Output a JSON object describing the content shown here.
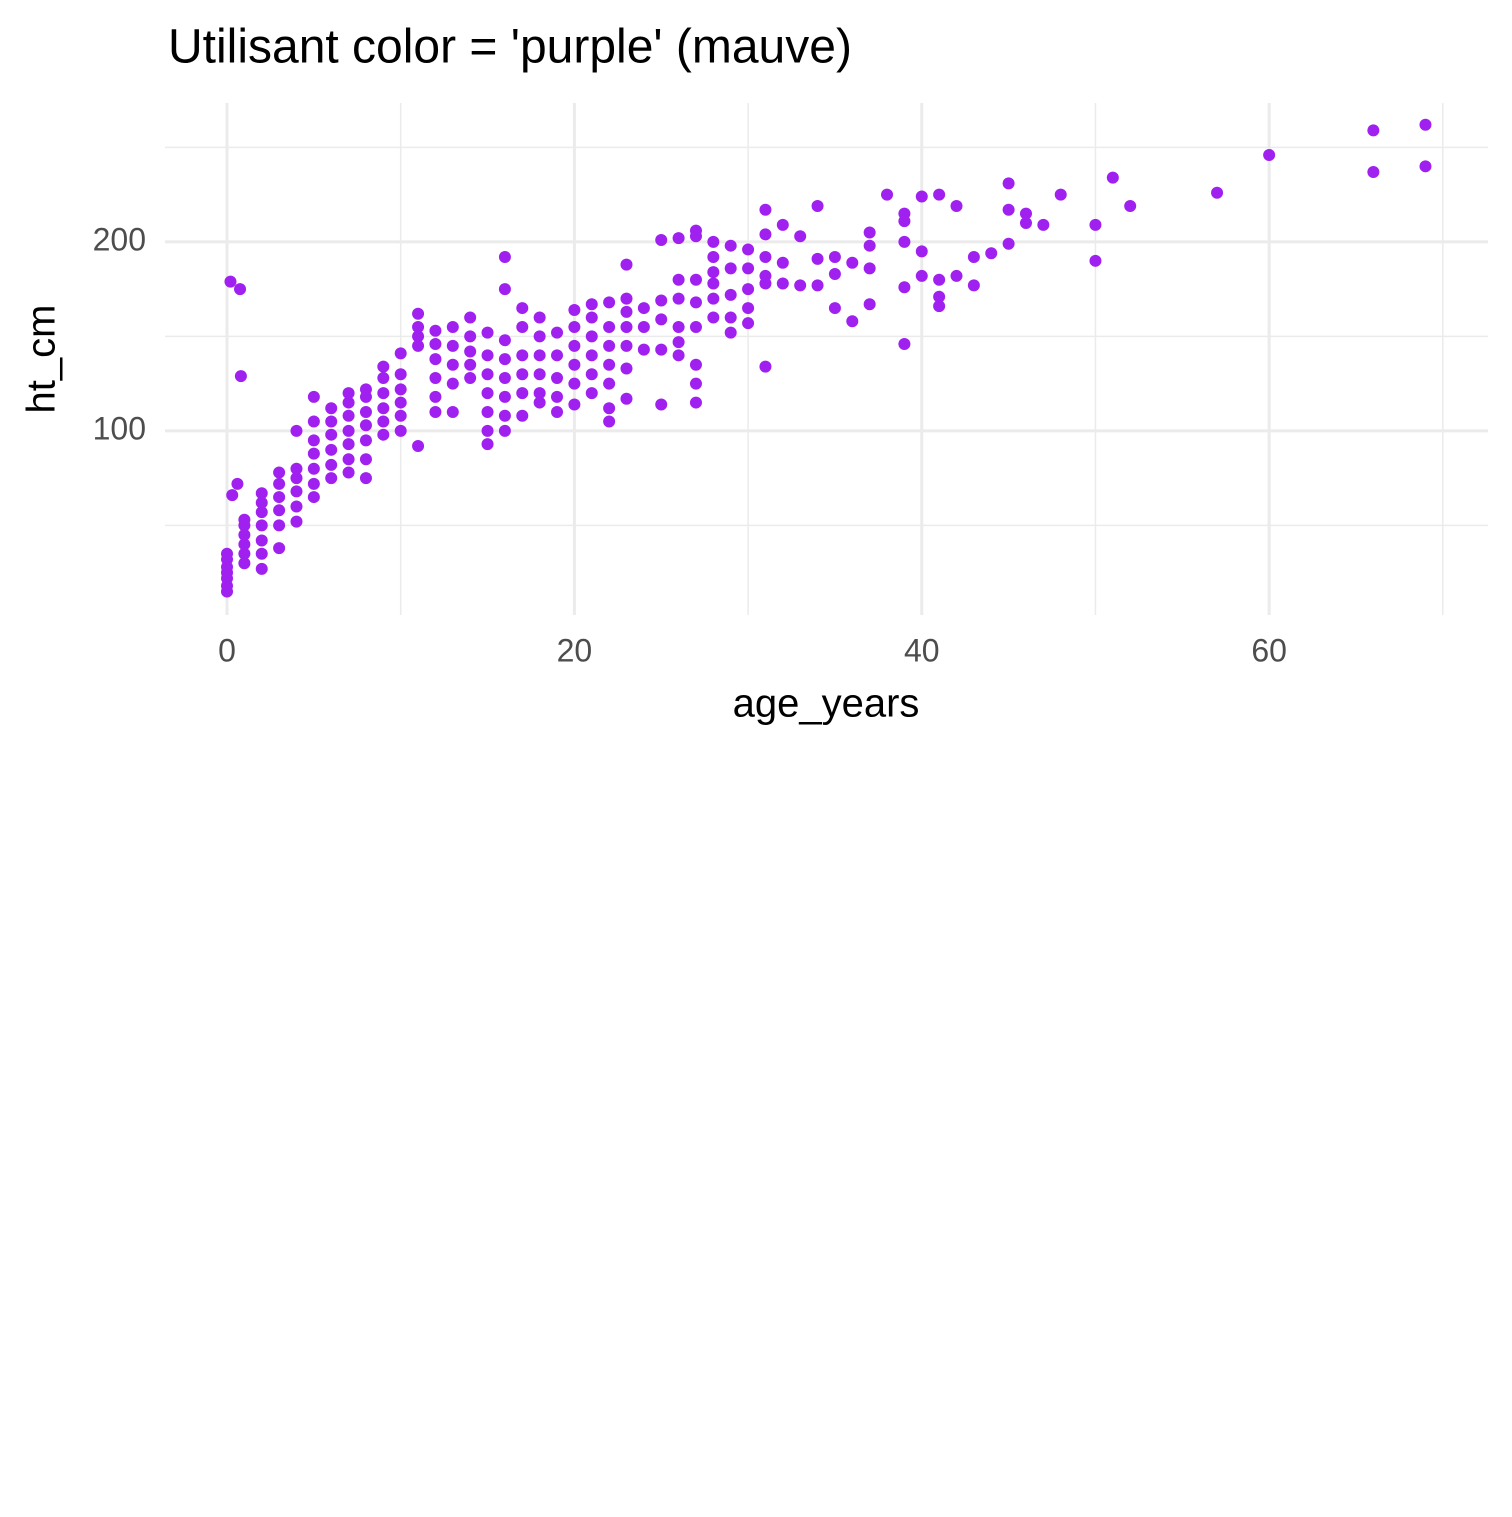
{
  "chart_data": {
    "type": "scatter",
    "title": "Utilisant color = 'purple' (mauve)",
    "x_label": "age_years",
    "y_label": "ht_cm",
    "color": "#A020F0",
    "grid": true,
    "xlim": [
      -3.57,
      72.6
    ],
    "ylim": [
      2.6,
      273.5
    ],
    "xticks": [
      0,
      20,
      40,
      60
    ],
    "yticks": [
      100,
      200
    ],
    "x_minor_grid": [
      10,
      30,
      50,
      70
    ],
    "y_minor_grid": [
      50,
      150,
      250
    ],
    "series": [
      {
        "x": [
          0,
          0,
          0,
          0,
          0,
          0,
          0,
          0.2,
          0.3,
          0.6,
          0.75,
          0.8,
          1,
          1,
          1,
          1,
          1,
          1,
          2,
          2,
          2,
          2,
          2,
          2,
          2,
          3,
          3,
          3,
          3,
          3,
          3,
          4,
          4,
          4,
          4,
          4,
          4,
          5,
          5,
          5,
          5,
          5,
          5,
          5,
          6,
          6,
          6,
          6,
          6,
          6,
          7,
          7,
          7,
          7,
          7,
          7,
          7,
          8,
          8,
          8,
          8,
          8,
          8,
          8,
          9,
          9,
          9,
          9,
          9,
          9,
          10,
          10,
          10,
          10,
          10,
          10,
          11,
          11,
          11,
          11,
          11,
          12,
          12,
          12,
          12,
          12,
          12,
          13,
          13,
          13,
          13,
          13,
          14,
          14,
          14,
          14,
          14,
          15,
          15,
          15,
          15,
          15,
          15,
          15,
          16,
          16,
          16,
          16,
          16,
          16,
          16,
          16,
          17,
          17,
          17,
          17,
          17,
          17,
          18,
          18,
          18,
          18,
          18,
          18,
          19,
          19,
          19,
          19,
          19,
          20,
          20,
          20,
          20,
          20,
          20,
          21,
          21,
          21,
          21,
          21,
          21,
          22,
          22,
          22,
          22,
          22,
          22,
          22,
          23,
          23,
          23,
          23,
          23,
          23,
          23,
          24,
          24,
          24,
          25,
          25,
          25,
          25,
          25,
          26,
          26,
          26,
          26,
          26,
          26,
          27,
          27,
          27,
          27,
          27,
          27,
          27,
          27,
          28,
          28,
          28,
          28,
          28,
          28,
          29,
          29,
          29,
          29,
          29,
          30,
          30,
          30,
          30,
          30,
          31,
          31,
          31,
          31,
          31,
          31,
          32,
          32,
          32,
          33,
          33,
          34,
          34,
          34,
          35,
          35,
          35,
          36,
          36,
          37,
          37,
          37,
          37,
          38,
          39,
          39,
          39,
          39,
          39,
          40,
          40,
          40,
          41,
          41,
          41,
          41,
          42,
          42,
          43,
          43,
          44,
          45,
          45,
          45,
          46,
          46,
          47,
          48,
          50,
          50,
          51,
          52,
          57,
          60,
          66,
          66,
          69,
          69
        ],
        "y": [
          15,
          18,
          22,
          25,
          28,
          32,
          35,
          179,
          66,
          72,
          175,
          129,
          30,
          35,
          40,
          45,
          50,
          53,
          27,
          35,
          42,
          50,
          57,
          62,
          67,
          38,
          50,
          58,
          65,
          72,
          78,
          52,
          60,
          68,
          75,
          80,
          100,
          65,
          72,
          80,
          88,
          95,
          105,
          118,
          75,
          82,
          90,
          98,
          105,
          112,
          78,
          85,
          93,
          100,
          108,
          115,
          120,
          75,
          85,
          95,
          103,
          110,
          118,
          122,
          98,
          105,
          112,
          120,
          128,
          134,
          100,
          108,
          115,
          122,
          130,
          141,
          92,
          145,
          150,
          155,
          162,
          110,
          118,
          128,
          138,
          146,
          153,
          110,
          125,
          135,
          145,
          155,
          128,
          135,
          142,
          150,
          160,
          93,
          100,
          110,
          120,
          130,
          140,
          152,
          100,
          108,
          118,
          128,
          138,
          148,
          175,
          192,
          108,
          120,
          130,
          140,
          155,
          165,
          115,
          120,
          130,
          140,
          150,
          160,
          110,
          118,
          128,
          140,
          152,
          114,
          125,
          135,
          145,
          155,
          164,
          120,
          130,
          140,
          150,
          160,
          167,
          105,
          112,
          125,
          135,
          145,
          155,
          168,
          117,
          133,
          145,
          155,
          163,
          170,
          188,
          143,
          155,
          165,
          114,
          143,
          159,
          169,
          201,
          140,
          147,
          155,
          170,
          180,
          202,
          115,
          125,
          135,
          155,
          168,
          180,
          203,
          206,
          160,
          170,
          178,
          184,
          192,
          200,
          152,
          160,
          172,
          186,
          198,
          157,
          165,
          175,
          186,
          196,
          134,
          178,
          182,
          192,
          204,
          217,
          178,
          189,
          209,
          177,
          203,
          177,
          191,
          219,
          165,
          183,
          192,
          158,
          189,
          167,
          186,
          198,
          205,
          225,
          146,
          176,
          200,
          211,
          215,
          182,
          195,
          224,
          166,
          171,
          180,
          225,
          182,
          219,
          177,
          192,
          194,
          199,
          217,
          231,
          210,
          215,
          209,
          225,
          190,
          209,
          234,
          219,
          226,
          246,
          237,
          259,
          240,
          262
        ]
      }
    ]
  }
}
